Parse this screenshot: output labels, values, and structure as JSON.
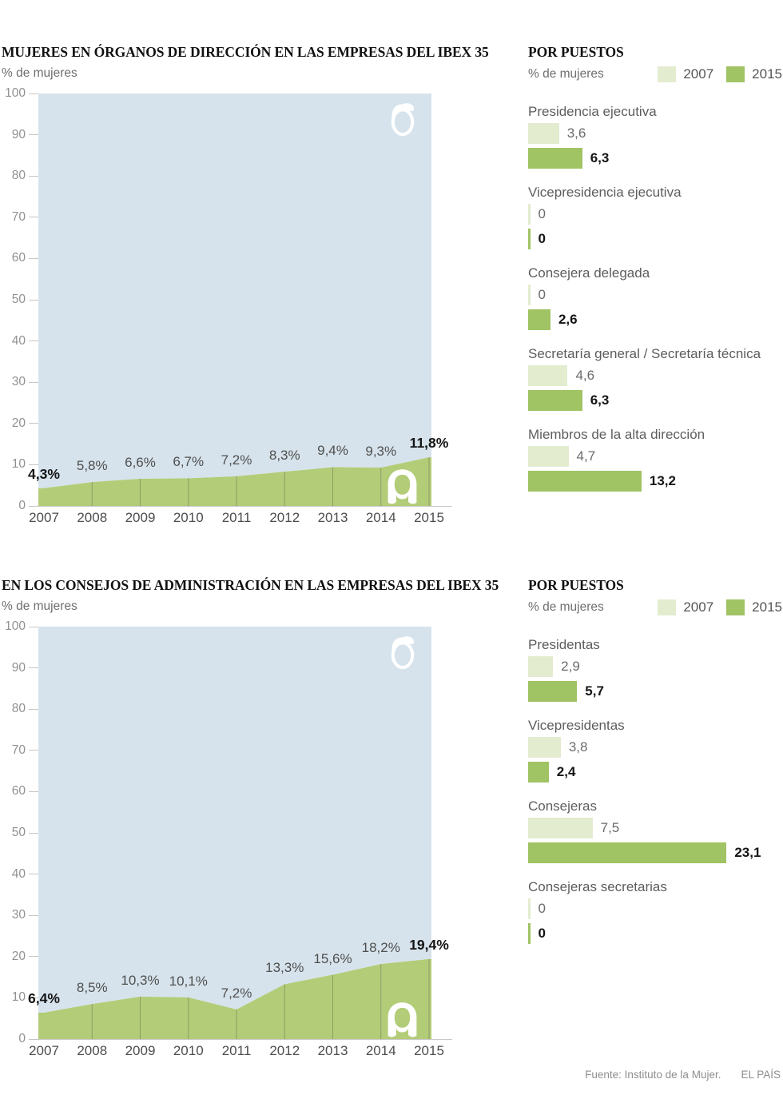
{
  "colors": {
    "area_blue": "#d6e3ec",
    "area_green": "#b3cc78",
    "bar_2007": "#e4ecd0",
    "bar_2015": "#a0c363",
    "area_grid": "#8d9c68",
    "axis_line": "#c9c9c9"
  },
  "footer": {
    "source": "Fuente: Instituto de la Mujer.",
    "brand": "EL PAÍS"
  },
  "chart_data": [
    {
      "type": "area",
      "title": "MUJERES EN ÓRGANOS DE DIRECCIÓN EN LAS EMPRESAS DEL IBEX 35",
      "subtitle": "% de mujeres",
      "x": [
        "2007",
        "2008",
        "2009",
        "2010",
        "2011",
        "2012",
        "2013",
        "2014",
        "2015"
      ],
      "values": [
        4.3,
        5.8,
        6.6,
        6.7,
        7.2,
        8.3,
        9.4,
        9.3,
        11.8
      ],
      "point_labels": [
        "4,3%",
        "5,8%",
        "6,6%",
        "6,7%",
        "7,2%",
        "8,3%",
        "9,4%",
        "9,3%",
        "11,8%"
      ],
      "emphasized_points": [
        0,
        8
      ],
      "ylim": [
        0,
        100
      ],
      "yticks": [
        0,
        10,
        20,
        30,
        40,
        50,
        60,
        70,
        80,
        90,
        100
      ],
      "grid": "vertical-lines-inside-area",
      "legend_position": "none"
    },
    {
      "type": "bar",
      "title": "POR PUESTOS",
      "subtitle": "% de mujeres",
      "legend": [
        "2007",
        "2015"
      ],
      "legend_position": "top-right",
      "categories": [
        "Presidencia ejecutiva",
        "Vicepresidencia ejecutiva",
        "Consejera delegada",
        "Secretaría general / Secretaría técnica",
        "Miembros de la alta dirección"
      ],
      "series": [
        {
          "name": "2007",
          "values": [
            3.6,
            0,
            0,
            4.6,
            4.7
          ],
          "labels": [
            "3,6",
            "0",
            "0",
            "4,6",
            "4,7"
          ]
        },
        {
          "name": "2015",
          "values": [
            6.3,
            0,
            2.6,
            6.3,
            13.2
          ],
          "labels": [
            "6,3",
            "0",
            "2,6",
            "6,3",
            "13,2"
          ]
        }
      ]
    },
    {
      "type": "area",
      "title": "EN LOS CONSEJOS DE ADMINISTRACIÓN EN LAS EMPRESAS DEL IBEX 35",
      "subtitle": "% de mujeres",
      "x": [
        "2007",
        "2008",
        "2009",
        "2010",
        "2011",
        "2012",
        "2013",
        "2014",
        "2015"
      ],
      "values": [
        6.4,
        8.5,
        10.3,
        10.1,
        7.2,
        13.3,
        15.6,
        18.2,
        19.4
      ],
      "point_labels": [
        "6,4%",
        "8,5%",
        "10,3%",
        "10,1%",
        "7,2%",
        "13,3%",
        "15,6%",
        "18,2%",
        "19,4%"
      ],
      "emphasized_points": [
        0,
        8
      ],
      "ylim": [
        0,
        100
      ],
      "yticks": [
        0,
        10,
        20,
        30,
        40,
        50,
        60,
        70,
        80,
        90,
        100
      ],
      "grid": "vertical-lines-inside-area",
      "legend_position": "none"
    },
    {
      "type": "bar",
      "title": "POR PUESTOS",
      "subtitle": "% de mujeres",
      "legend": [
        "2007",
        "2015"
      ],
      "legend_position": "top-right",
      "categories": [
        "Presidentas",
        "Vicepresidentas",
        "Consejeras",
        "Consejeras secretarias"
      ],
      "series": [
        {
          "name": "2007",
          "values": [
            2.9,
            3.8,
            7.5,
            0
          ],
          "labels": [
            "2,9",
            "3,8",
            "7,5",
            "0"
          ]
        },
        {
          "name": "2015",
          "values": [
            5.7,
            2.4,
            23.1,
            0
          ],
          "labels": [
            "5,7",
            "2,4",
            "23,1",
            "0"
          ]
        }
      ]
    }
  ]
}
